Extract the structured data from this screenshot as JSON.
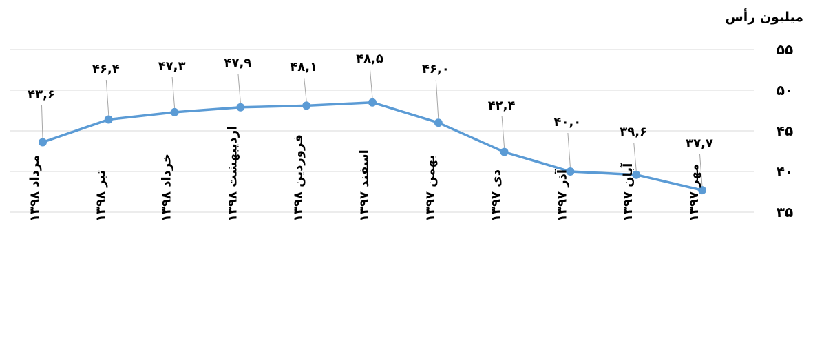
{
  "chart_data": {
    "type": "line",
    "ylabel": "میلیون رأس",
    "ylim": [
      35,
      55
    ],
    "yticks": [
      "۳۵",
      "۴۰",
      "۴۵",
      "۵۰",
      "۵۵"
    ],
    "grid": true,
    "categories": [
      "مرداد ۱۳۹۸",
      "تیر ۱۳۹۸",
      "خرداد ۱۳۹۸",
      "اردیبهشت ۱۳۹۸",
      "فروردین ۱۳۹۸",
      "اسفند ۱۳۹۷",
      "بهمن ۱۳۹۷",
      "دی ۱۳۹۷",
      "آذر ۱۳۹۷",
      "آبان ۱۳۹۷",
      "مهر ۱۳۹۷"
    ],
    "series": [
      {
        "values": [
          43.6,
          46.4,
          47.3,
          47.9,
          48.1,
          48.5,
          46.0,
          42.4,
          40.0,
          39.6,
          37.7
        ],
        "labels": [
          "۴۳,۶",
          "۴۶,۴",
          "۴۷,۳",
          "۴۷,۹",
          "۴۸,۱",
          "۴۸,۵",
          "۴۶,۰",
          "۴۲,۴",
          "۴۰,۰",
          "۳۹,۶",
          "۳۷,۷"
        ],
        "color": "#5B9BD5"
      }
    ]
  }
}
